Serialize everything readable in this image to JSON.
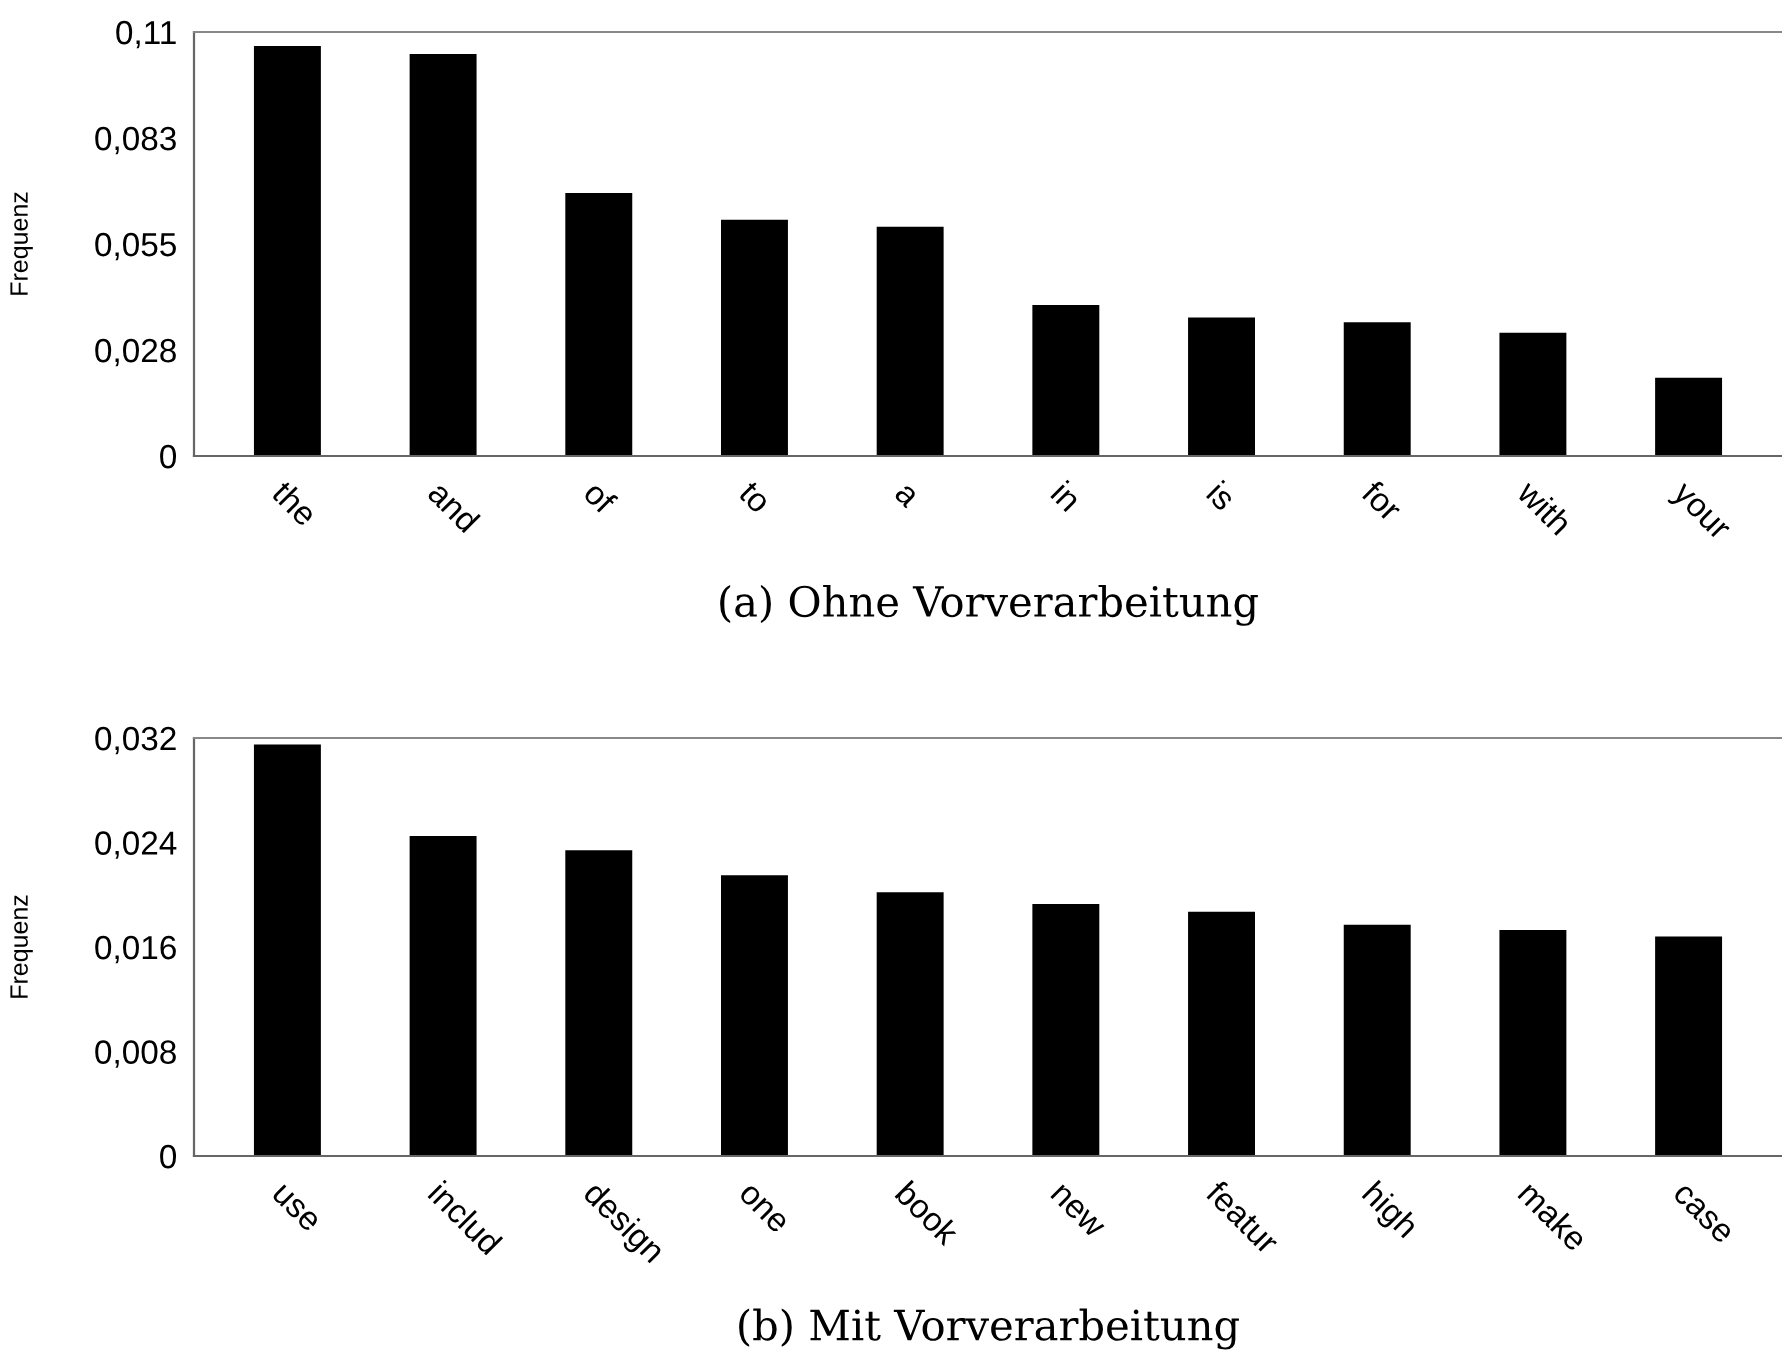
{
  "chart_data": [
    {
      "type": "bar",
      "xlabel": "(a) Ohne Vorverarbeitung",
      "ylabel": "Frequenz",
      "categories": [
        "the",
        "and",
        "of",
        "to",
        "a",
        "in",
        "is",
        "for",
        "with",
        "your"
      ],
      "values": [
        0.1064,
        0.1043,
        0.0682,
        0.0613,
        0.0595,
        0.0392,
        0.0359,
        0.0347,
        0.032,
        0.0203
      ],
      "color": "#000000",
      "ylim": [
        0,
        0.11
      ],
      "yticks": [
        {
          "value": 0,
          "label": "0"
        },
        {
          "value": 0.0275,
          "label": "0,028"
        },
        {
          "value": 0.055,
          "label": "0,055"
        },
        {
          "value": 0.0825,
          "label": "0,083"
        },
        {
          "value": 0.11,
          "label": "0,11"
        }
      ],
      "grid": false,
      "legend": false
    },
    {
      "type": "bar",
      "xlabel": "(b) Mit Vorverarbeitung",
      "ylabel": "Frequenz",
      "categories": [
        "use",
        "includ",
        "design",
        "one",
        "book",
        "new",
        "featur",
        "high",
        "make",
        "case"
      ],
      "values": [
        0.0315,
        0.0245,
        0.0234,
        0.0215,
        0.0202,
        0.0193,
        0.0187,
        0.0177,
        0.0173,
        0.0168
      ],
      "color": "#000000",
      "ylim": [
        0,
        0.032
      ],
      "yticks": [
        {
          "value": 0,
          "label": "0"
        },
        {
          "value": 0.008,
          "label": "0,008"
        },
        {
          "value": 0.016,
          "label": "0,016"
        },
        {
          "value": 0.024,
          "label": "0,024"
        },
        {
          "value": 0.032,
          "label": "0,032"
        }
      ],
      "grid": false,
      "legend": false
    }
  ]
}
